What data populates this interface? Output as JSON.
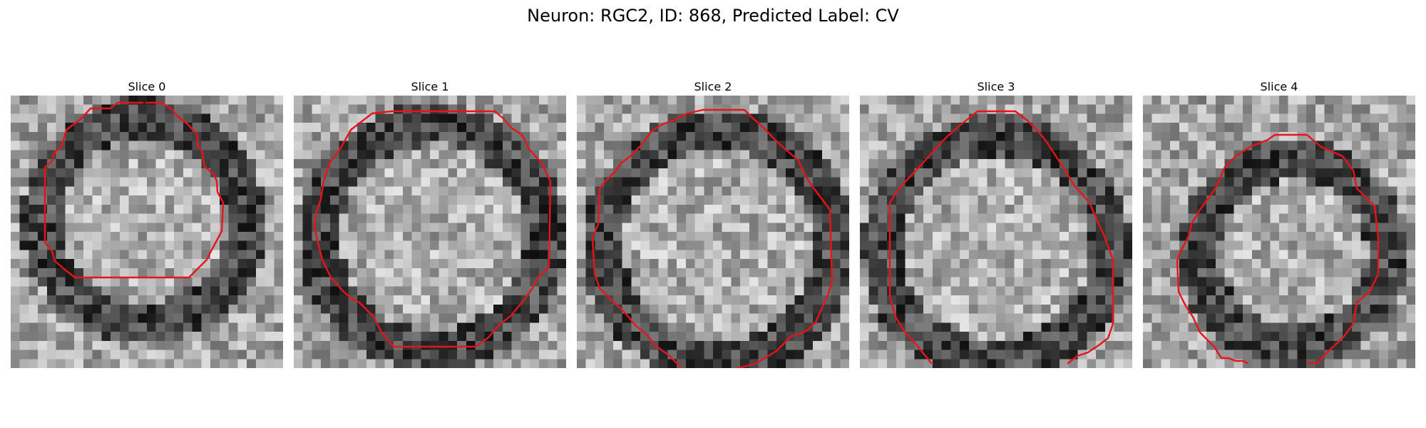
{
  "figure": {
    "title": "Neuron: RGC2, ID: 868, Predicted Label: CV",
    "contour_color": "#e8141a",
    "colormap": "gray"
  },
  "panels": [
    {
      "title": "Slice 0",
      "ring_radius": 0.4,
      "center": [
        0.49,
        0.46
      ]
    },
    {
      "title": "Slice 1",
      "ring_radius": 0.44,
      "center": [
        0.51,
        0.52
      ]
    },
    {
      "title": "Slice 2",
      "ring_radius": 0.45,
      "center": [
        0.52,
        0.55
      ]
    },
    {
      "title": "Slice 3",
      "ring_radius": 0.44,
      "center": [
        0.5,
        0.56
      ]
    },
    {
      "title": "Slice 4",
      "ring_radius": 0.37,
      "center": [
        0.55,
        0.58
      ]
    }
  ]
}
